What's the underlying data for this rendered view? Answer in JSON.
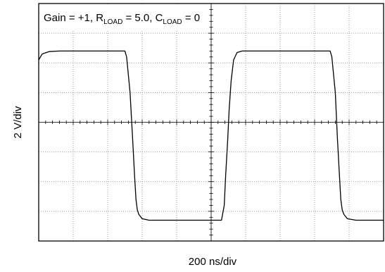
{
  "chart_data": {
    "type": "line",
    "title_parts": {
      "t1": "Gain = +1, R",
      "s1": "LOAD",
      "t2": " = 5.0, C",
      "s2": "LOAD",
      "t3": " = 0"
    },
    "xlabel": "200 ns/div",
    "ylabel": "2 V/div",
    "x_divisions": 10,
    "y_divisions": 8,
    "xlim": [
      0,
      10
    ],
    "ylim": [
      -4,
      4
    ],
    "x_units": "div",
    "y_units": "div",
    "grid": true,
    "series": [
      {
        "x": [
          0.0,
          0.1,
          0.3,
          0.6,
          1.0,
          1.5,
          2.0,
          2.5,
          2.55,
          2.65,
          2.72,
          2.78,
          2.82,
          2.86,
          2.9,
          3.0,
          3.2,
          3.5,
          4.0,
          4.5,
          5.0,
          5.3,
          5.38,
          5.42,
          5.48,
          5.52,
          5.58,
          5.65,
          5.75,
          5.9,
          6.2,
          6.5,
          7.0,
          7.5,
          8.0,
          8.45,
          8.5,
          8.6,
          8.66,
          8.72,
          8.76,
          8.8,
          8.85,
          8.95,
          9.2,
          9.5,
          9.8,
          10.0
        ],
        "y": [
          2.1,
          2.3,
          2.38,
          2.4,
          2.4,
          2.4,
          2.4,
          2.4,
          2.2,
          1.0,
          -0.5,
          -1.8,
          -2.6,
          -2.95,
          -3.1,
          -3.25,
          -3.3,
          -3.3,
          -3.3,
          -3.3,
          -3.3,
          -3.3,
          -2.8,
          -1.8,
          -0.6,
          0.4,
          1.4,
          2.1,
          2.35,
          2.4,
          2.4,
          2.4,
          2.4,
          2.4,
          2.4,
          2.4,
          2.2,
          1.0,
          -0.5,
          -1.8,
          -2.6,
          -2.95,
          -3.1,
          -3.25,
          -3.3,
          -3.3,
          -3.3,
          -3.3
        ]
      }
    ]
  }
}
